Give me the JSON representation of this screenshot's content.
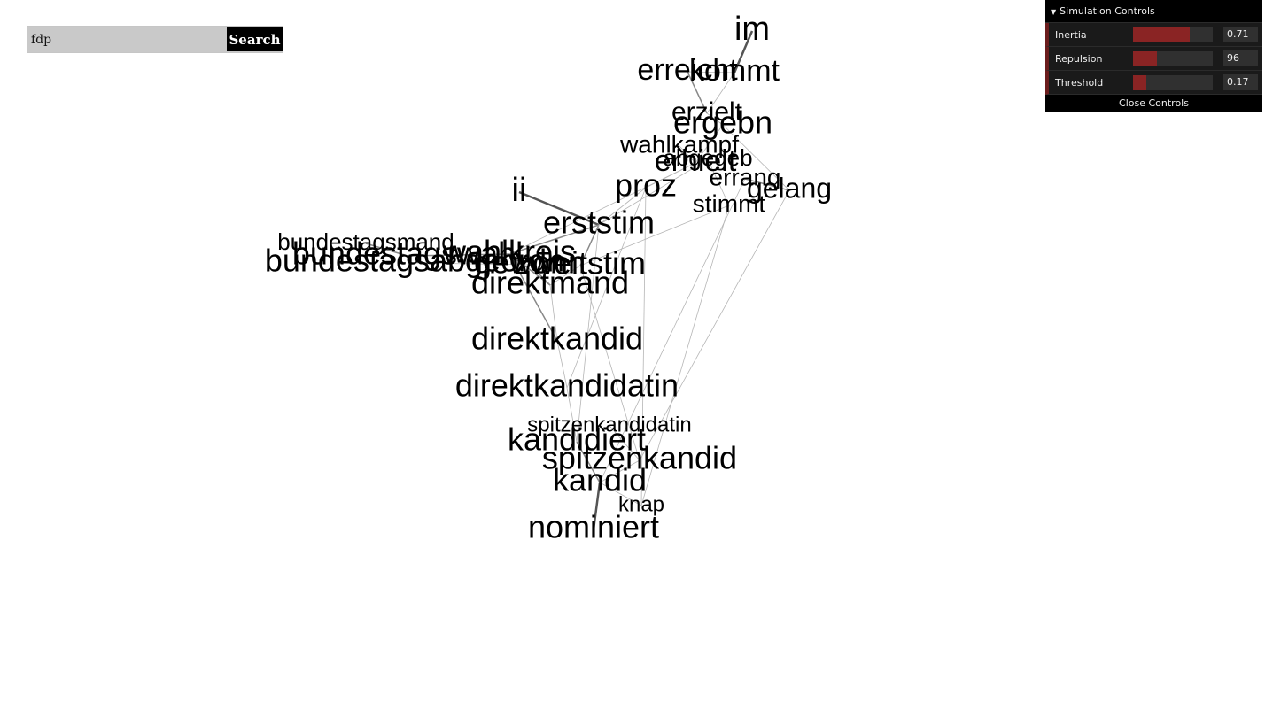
{
  "search": {
    "value": "fdp",
    "button_label": "Search"
  },
  "controls": {
    "title": "Simulation Controls",
    "rows": [
      {
        "label": "Inertia",
        "value": "0.71",
        "fill_fraction": 0.71
      },
      {
        "label": "Repulsion",
        "value": "96",
        "fill_fraction": 0.3
      },
      {
        "label": "Threshold",
        "value": "0.17",
        "fill_fraction": 0.17
      }
    ],
    "close_label": "Close Controls"
  },
  "graph": {
    "words": [
      {
        "id": "im",
        "text": "im",
        "size": 38
      },
      {
        "id": "erreicht",
        "text": "erreicht",
        "size": 34
      },
      {
        "id": "kommt",
        "text": "kommt",
        "size": 34
      },
      {
        "id": "erzielt",
        "text": "erzielt",
        "size": 30
      },
      {
        "id": "ergebn",
        "text": "ergebn",
        "size": 36
      },
      {
        "id": "wahlkampf",
        "text": "wahlkampf",
        "size": 28
      },
      {
        "id": "abgegeb",
        "text": "abgegeb",
        "size": 26
      },
      {
        "id": "erhielt",
        "text": "erhielt",
        "size": 34
      },
      {
        "id": "errang",
        "text": "errang",
        "size": 28
      },
      {
        "id": "gelang",
        "text": "gelang",
        "size": 32
      },
      {
        "id": "proz",
        "text": "proz",
        "size": 36
      },
      {
        "id": "stimmt",
        "text": "stimmt",
        "size": 28
      },
      {
        "id": "ii",
        "text": "ii",
        "size": 38
      },
      {
        "id": "erststim",
        "text": "erststim",
        "size": 36
      },
      {
        "id": "bundestagsmand",
        "text": "bundestagsmand",
        "size": 26
      },
      {
        "id": "bundestagswahl",
        "text": "bundestagswahl",
        "size": 36
      },
      {
        "id": "bundestagsabgeordn",
        "text": "bundestagsabgeordn",
        "size": 36
      },
      {
        "id": "wahlkreis",
        "text": "wahlkreis",
        "size": 36
      },
      {
        "id": "gewonn",
        "text": "gewonn",
        "size": 36
      },
      {
        "id": "zweitstim",
        "text": "zweitstim",
        "size": 36
      },
      {
        "id": "direktmand",
        "text": "direktmand",
        "size": 36
      },
      {
        "id": "direktkandid",
        "text": "direktkandid",
        "size": 36
      },
      {
        "id": "direktkandidatin",
        "text": "direktkandidatin",
        "size": 36
      },
      {
        "id": "spitzenkandidatin",
        "text": "spitzenkandidatin",
        "size": 24
      },
      {
        "id": "kandidiert",
        "text": "kandidiert",
        "size": 36
      },
      {
        "id": "spitzenkandid",
        "text": "spitzenkandid",
        "size": 36
      },
      {
        "id": "kandid",
        "text": "kandid",
        "size": 36
      },
      {
        "id": "knap",
        "text": "knap",
        "size": 24
      },
      {
        "id": "nominiert",
        "text": "nominiert",
        "size": 36
      }
    ],
    "links": [
      {
        "source": "im",
        "target": "kommt",
        "weight": 3
      },
      {
        "source": "erreicht",
        "target": "kommt",
        "weight": 1
      },
      {
        "source": "erreicht",
        "target": "erzielt",
        "weight": 2
      },
      {
        "source": "kommt",
        "target": "erzielt",
        "weight": 1
      },
      {
        "source": "erzielt",
        "target": "ergebn",
        "weight": 1
      },
      {
        "source": "ergebn",
        "target": "erhielt",
        "weight": 1
      },
      {
        "source": "wahlkampf",
        "target": "erhielt",
        "weight": 1
      },
      {
        "source": "erhielt",
        "target": "proz",
        "weight": 1
      },
      {
        "source": "abgegeb",
        "target": "stimmt",
        "weight": 1
      },
      {
        "source": "errang",
        "target": "gelang",
        "weight": 2
      },
      {
        "source": "proz",
        "target": "erststim",
        "weight": 1
      },
      {
        "source": "stimmt",
        "target": "zweitstim",
        "weight": 1
      },
      {
        "source": "ii",
        "target": "erststim",
        "weight": 3
      },
      {
        "source": "erststim",
        "target": "zweitstim",
        "weight": 2
      },
      {
        "source": "erststim",
        "target": "wahlkreis",
        "weight": 2
      },
      {
        "source": "bundestagsmand",
        "target": "bundestagswahl",
        "weight": 2
      },
      {
        "source": "bundestagswahl",
        "target": "wahlkreis",
        "weight": 2
      },
      {
        "source": "bundestagsabgeordn",
        "target": "gewonn",
        "weight": 1
      },
      {
        "source": "wahlkreis",
        "target": "direktmand",
        "weight": 2
      },
      {
        "source": "gewonn",
        "target": "direktmand",
        "weight": 2
      },
      {
        "source": "zweitstim",
        "target": "direktmand",
        "weight": 1
      },
      {
        "source": "direktmand",
        "target": "direktkandid",
        "weight": 1
      },
      {
        "source": "wahlkreis",
        "target": "direktkandid",
        "weight": 2
      },
      {
        "source": "direktkandid",
        "target": "direktkandidatin",
        "weight": 1
      },
      {
        "source": "direktkandidatin",
        "target": "kandidiert",
        "weight": 1
      },
      {
        "source": "spitzenkandidatin",
        "target": "spitzenkandid",
        "weight": 1
      },
      {
        "source": "kandidiert",
        "target": "kandid",
        "weight": 2
      },
      {
        "source": "spitzenkandid",
        "target": "kandid",
        "weight": 1
      },
      {
        "source": "kandid",
        "target": "knap",
        "weight": 1
      },
      {
        "source": "kandid",
        "target": "nominiert",
        "weight": 3
      },
      {
        "source": "gelang",
        "target": "spitzenkandid",
        "weight": 1
      },
      {
        "source": "errang",
        "target": "kandid",
        "weight": 1
      },
      {
        "source": "stimmt",
        "target": "knap",
        "weight": 1
      },
      {
        "source": "erhielt",
        "target": "wahlkreis",
        "weight": 1
      },
      {
        "source": "proz",
        "target": "direktkandidatin",
        "weight": 1
      },
      {
        "source": "erststim",
        "target": "kandidiert",
        "weight": 1
      },
      {
        "source": "abgegeb",
        "target": "erststim",
        "weight": 1
      },
      {
        "source": "ergebn",
        "target": "gelang",
        "weight": 1
      },
      {
        "source": "zweitstim",
        "target": "spitzenkandid",
        "weight": 1
      },
      {
        "source": "proz",
        "target": "knap",
        "weight": 1
      }
    ]
  }
}
